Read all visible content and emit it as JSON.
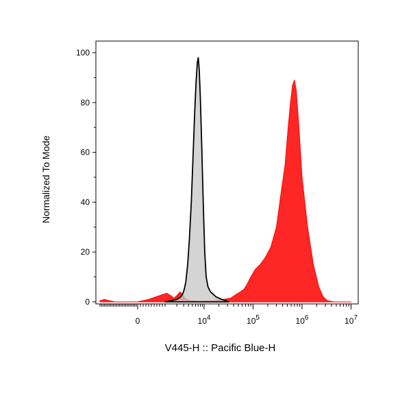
{
  "chart_data": {
    "type": "area",
    "xlabel": "V445-H :: Pacific Blue-H",
    "ylabel": "Normalized To Mode",
    "x_scale": "biexponential",
    "xlim": [
      -2500,
      10000000
    ],
    "ylim": [
      0,
      100
    ],
    "y_ticks": [
      0,
      20,
      40,
      60,
      80,
      100
    ],
    "x_ticks": [
      {
        "value": 0,
        "base": "0",
        "exp": ""
      },
      {
        "value": 10000,
        "base": "10",
        "exp": "4"
      },
      {
        "value": 100000,
        "base": "10",
        "exp": "5"
      },
      {
        "value": 1000000,
        "base": "10",
        "exp": "6"
      },
      {
        "value": 10000000,
        "base": "10",
        "exp": "7"
      }
    ],
    "grid": false,
    "series": [
      {
        "fill": "#ff0000",
        "stroke": "#ff0000",
        "points": [
          [
            -2500,
            0.5
          ],
          [
            -2200,
            1
          ],
          [
            -1900,
            0.5
          ],
          [
            -1500,
            0
          ],
          [
            0,
            0
          ],
          [
            400,
            1
          ],
          [
            800,
            2.5
          ],
          [
            1100,
            3.5
          ],
          [
            1400,
            2.5
          ],
          [
            1700,
            1.5
          ],
          [
            2000,
            2.5
          ],
          [
            2400,
            4
          ],
          [
            2800,
            3
          ],
          [
            3200,
            1.5
          ],
          [
            3800,
            0.8
          ],
          [
            5000,
            0.5
          ],
          [
            8000,
            0.3
          ],
          [
            15000,
            0.5
          ],
          [
            25000,
            1
          ],
          [
            35000,
            1.5
          ],
          [
            45000,
            3
          ],
          [
            55000,
            4
          ],
          [
            65000,
            5
          ],
          [
            75000,
            7
          ],
          [
            90000,
            10
          ],
          [
            110000,
            13
          ],
          [
            140000,
            15
          ],
          [
            180000,
            18
          ],
          [
            230000,
            22
          ],
          [
            300000,
            30
          ],
          [
            380000,
            45
          ],
          [
            450000,
            55
          ],
          [
            520000,
            70
          ],
          [
            580000,
            80
          ],
          [
            640000,
            87
          ],
          [
            700000,
            89
          ],
          [
            760000,
            85
          ],
          [
            850000,
            72
          ],
          [
            1000000,
            50
          ],
          [
            1300000,
            30
          ],
          [
            1700000,
            15
          ],
          [
            2200000,
            6
          ],
          [
            2700000,
            2
          ],
          [
            3300000,
            0.5
          ],
          [
            4500000,
            0
          ],
          [
            10000000,
            0
          ]
        ]
      },
      {
        "fill": "#c8c8c8",
        "stroke": "#000000",
        "points": [
          [
            1000,
            0
          ],
          [
            1500,
            0.5
          ],
          [
            2000,
            1
          ],
          [
            2500,
            2
          ],
          [
            2800,
            3
          ],
          [
            3100,
            5
          ],
          [
            3400,
            8
          ],
          [
            3800,
            15
          ],
          [
            4200,
            25
          ],
          [
            4700,
            40
          ],
          [
            5200,
            58
          ],
          [
            5700,
            75
          ],
          [
            6200,
            88
          ],
          [
            6700,
            96
          ],
          [
            7100,
            98
          ],
          [
            7500,
            93
          ],
          [
            8000,
            82
          ],
          [
            8700,
            62
          ],
          [
            9500,
            40
          ],
          [
            10300,
            20
          ],
          [
            11000,
            10
          ],
          [
            12000,
            6
          ],
          [
            13500,
            4
          ],
          [
            15500,
            3
          ],
          [
            17500,
            2
          ],
          [
            20000,
            1.5
          ],
          [
            23000,
            1
          ],
          [
            27000,
            0.5
          ],
          [
            32000,
            0
          ]
        ]
      }
    ]
  }
}
